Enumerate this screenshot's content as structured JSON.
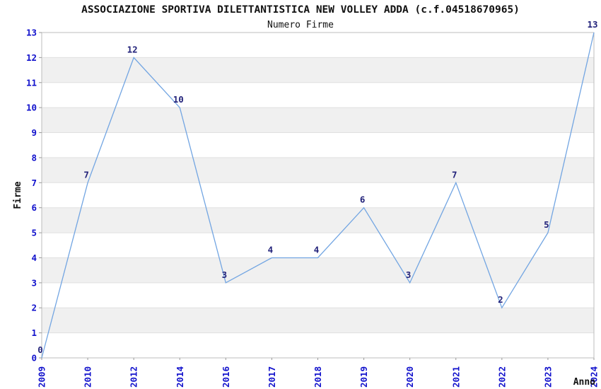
{
  "chart_data": {
    "type": "line",
    "title": "ASSOCIAZIONE SPORTIVA DILETTANTISTICA NEW VOLLEY ADDA (c.f.04518670965)",
    "subtitle": "Numero Firme",
    "xlabel": "Anno",
    "ylabel": "Firme",
    "categories": [
      "2009",
      "2010",
      "2012",
      "2014",
      "2016",
      "2017",
      "2018",
      "2019",
      "2020",
      "2021",
      "2022",
      "2023",
      "2024"
    ],
    "values": [
      0,
      7,
      12,
      10,
      3,
      4,
      4,
      6,
      3,
      7,
      2,
      5,
      13
    ],
    "ylim": [
      0,
      13
    ],
    "ytick_step": 1,
    "legend": "none",
    "grid": "horizontal-bands",
    "colors": {
      "line": "#72a5e2",
      "data_label": "#22227a",
      "tick_label": "#1111cc",
      "axis_title": "#111111",
      "band_even": "#ffffff",
      "band_odd": "#f0f0f0",
      "grid_line": "#e0e0e0",
      "plot_border": "#bdbdbd",
      "tick_mark": "#999999"
    }
  }
}
